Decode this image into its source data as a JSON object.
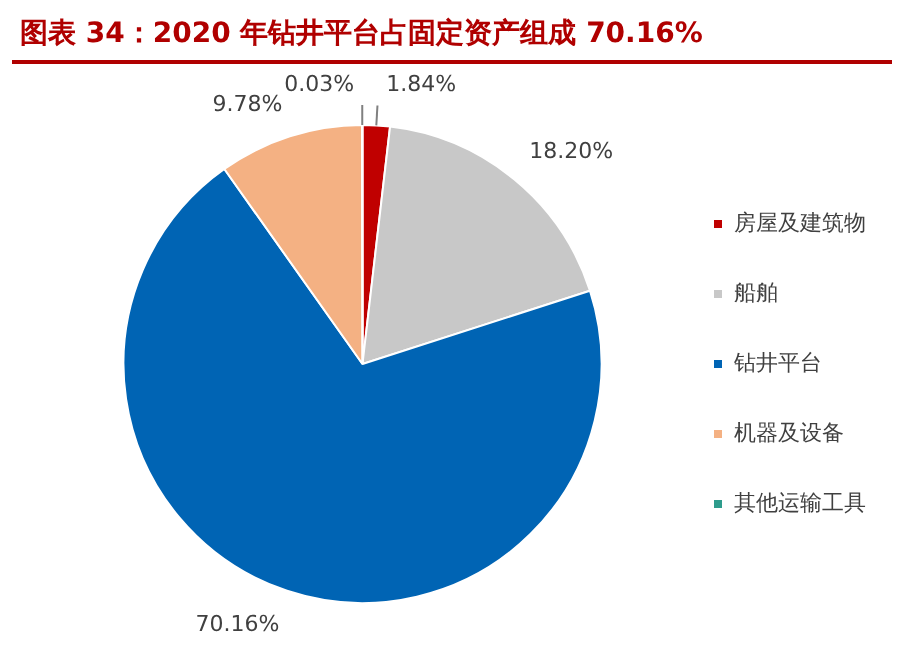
{
  "chart_data": {
    "type": "pie",
    "title": "图表 34：2020 年钻井平台占固定资产组成 70.16%",
    "categories": [
      "房屋及建筑物",
      "船舶",
      "钻井平台",
      "机器及设备",
      "其他运输工具"
    ],
    "values": [
      1.84,
      18.2,
      70.16,
      9.78,
      0.03
    ],
    "colors": [
      "#c00000",
      "#c8c8c8",
      "#0064b4",
      "#f4b183",
      "#2e9c8c"
    ],
    "value_labels": [
      "1.84%",
      "18.20%",
      "70.16%",
      "9.78%",
      "0.03%"
    ],
    "legend": "right"
  }
}
